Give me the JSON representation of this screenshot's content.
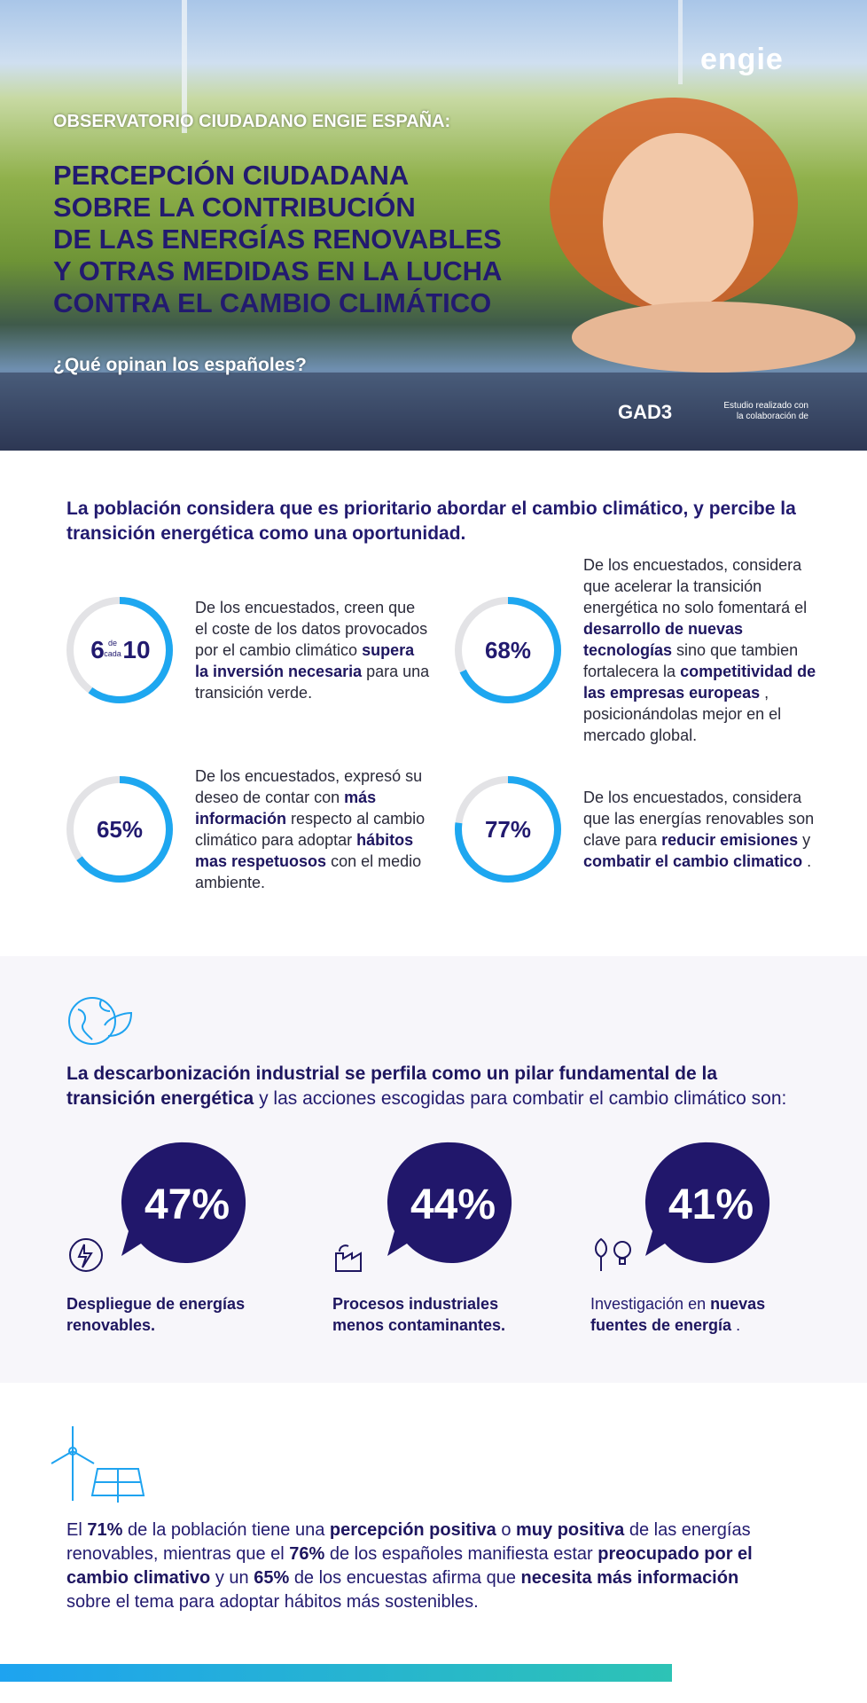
{
  "hero": {
    "logo": "engie",
    "kicker": "OBSERVATORIO CIUDADANO ENGIE ESPAÑA:",
    "title_lines": [
      "PERCEPCIÓN CIUDADANA",
      "SOBRE LA CONTRIBUCIÓN",
      "DE LAS ENERGÍAS RENOVABLES",
      "Y OTRAS MEDIDAS EN LA LUCHA",
      "CONTRA EL CAMBIO CLIMÁTICO"
    ],
    "question": "¿Qué opinan los españoles?",
    "partner_note": [
      "Estudio realizado con",
      "la colaboración de"
    ],
    "partner": "GAD3"
  },
  "section1": {
    "heading": "La población considera que es prioritario abordar el cambio climático, y percibe la transición energética como una oportunidad.",
    "stats": [
      {
        "value": 6,
        "connector": [
          "de",
          "cada"
        ],
        "total": 10,
        "text": [
          {
            "text": "De los encuestados, creen que el coste de los datos provocados por el cambio climático",
            "bold": false
          },
          {
            "text": "supera la inversión necesaria",
            "bold": true
          },
          {
            "text": "para una transición verde.",
            "bold": false
          }
        ]
      },
      {
        "value": 68,
        "label": "68%",
        "text": [
          {
            "text": "De los encuestados, considera que acelerar la transición energética no solo fomentará el",
            "bold": false
          },
          {
            "text": "desarrollo de nuevas tecnologías",
            "bold": true
          },
          {
            "text": "sino que tambien fortalecera la",
            "bold": false
          },
          {
            "text": "competitividad de las empresas europeas",
            "bold": true
          },
          {
            "text": ", posicionándolas mejor en el mercado global.",
            "bold": false
          }
        ]
      },
      {
        "value": 65,
        "label": "65%",
        "text": [
          {
            "text": "De los encuestados, expresó su deseo de contar con",
            "bold": false
          },
          {
            "text": "más información",
            "bold": true
          },
          {
            "text": "respecto al cambio climático para adoptar",
            "bold": false
          },
          {
            "text": "hábitos mas respetuosos",
            "bold": true
          },
          {
            "text": "con el medio ambiente.",
            "bold": false
          }
        ]
      },
      {
        "value": 77,
        "label": "77%",
        "text": [
          {
            "text": "De los encuestados, considera que las energías renovables son clave para",
            "bold": false
          },
          {
            "text": "reducir emisiones",
            "bold": true
          },
          {
            "text": "y",
            "bold": false
          },
          {
            "text": "combatir el cambio climatico",
            "bold": true
          },
          {
            "text": ".",
            "bold": false
          }
        ]
      }
    ]
  },
  "section2": {
    "heading": [
      {
        "text": "La descarbonización industrial se perfila como un pilar fundamental de la transición energética",
        "bold": true
      },
      {
        "text": "y las acciones escogidas para combatir el cambio climático son:",
        "bold": false
      }
    ],
    "actions": [
      {
        "label": "47%",
        "text": [
          {
            "text": "Despliegue de energías renovables.",
            "bold": true
          }
        ]
      },
      {
        "label": "44%",
        "text": [
          {
            "text": "Procesos industriales menos contaminantes.",
            "bold": true
          }
        ]
      },
      {
        "label": "41%",
        "text": [
          {
            "text": "Investigación en",
            "bold": false
          },
          {
            "text": "nuevas fuentes de energía",
            "bold": true
          },
          {
            "text": ".",
            "bold": false
          }
        ]
      }
    ]
  },
  "section3": {
    "text": [
      {
        "text": "El",
        "bold": false
      },
      {
        "text": "71%",
        "bold": true
      },
      {
        "text": "de la población tiene una",
        "bold": false
      },
      {
        "text": "percepción positiva",
        "bold": true
      },
      {
        "text": "o",
        "bold": false
      },
      {
        "text": "muy positiva",
        "bold": true
      },
      {
        "text": "de las energías renovables, mientras que el",
        "bold": false
      },
      {
        "text": "76%",
        "bold": true
      },
      {
        "text": "de los españoles manifiesta estar",
        "bold": false
      },
      {
        "text": "preocupado por el cambio climativo",
        "bold": true
      },
      {
        "text": "y un",
        "bold": false
      },
      {
        "text": "65%",
        "bold": true
      },
      {
        "text": "de los encuestas afirma que",
        "bold": false
      },
      {
        "text": "necesita más información",
        "bold": true
      },
      {
        "text": "sobre el tema para adoptar hábitos más sostenibles.",
        "bold": false
      }
    ]
  }
}
